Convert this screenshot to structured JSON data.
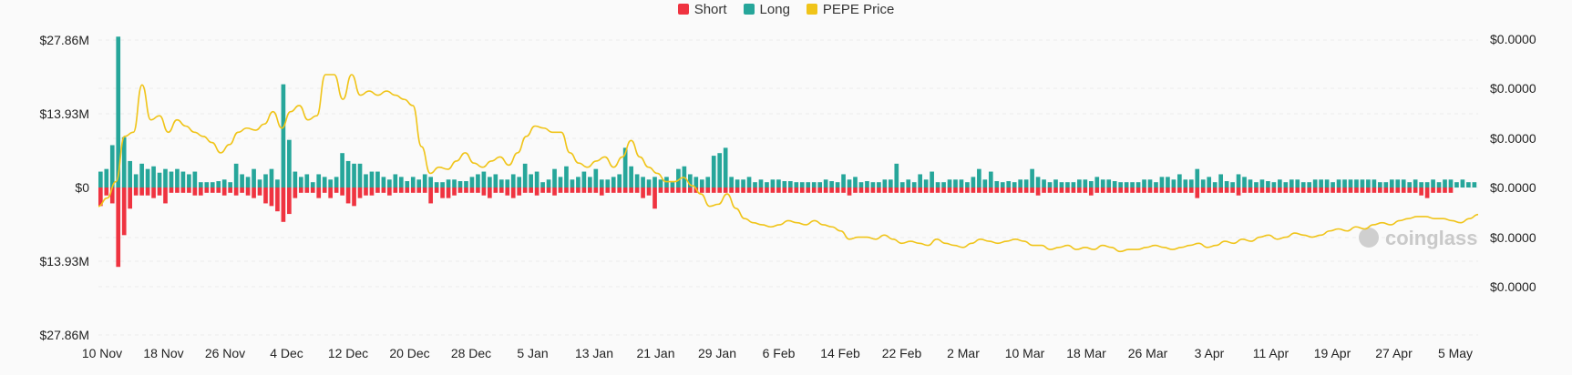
{
  "legend": {
    "items": [
      {
        "label": "Short",
        "color": "#ef3340"
      },
      {
        "label": "Long",
        "color": "#26a69a"
      },
      {
        "label": "PEPE Price",
        "color": "#f0c419"
      }
    ]
  },
  "watermark": "coinglass",
  "chart_data": {
    "type": "bar",
    "x_tick_labels": [
      "10 Nov",
      "18 Nov",
      "26 Nov",
      "4 Dec",
      "12 Dec",
      "20 Dec",
      "28 Dec",
      "5 Jan",
      "13 Jan",
      "21 Jan",
      "29 Jan",
      "6 Feb",
      "14 Feb",
      "22 Feb",
      "2 Mar",
      "10 Mar",
      "18 Mar",
      "26 Mar",
      "3 Apr",
      "11 Apr",
      "19 Apr",
      "27 Apr",
      "5 May"
    ],
    "y_left_tick_labels": [
      "$27.86M",
      "$13.93M",
      "$0",
      "$13.93M",
      "$27.86M"
    ],
    "y_left_values": [
      27.86,
      13.93,
      0,
      -13.93,
      -27.86
    ],
    "y_right_tick_labels": [
      "$0.0000",
      "$0.0000",
      "$0.0000",
      "$0.0000",
      "$0.0000",
      "$0.0000"
    ],
    "ylim_left": [
      -27.86,
      27.86
    ],
    "grid": true,
    "legend_position": "top-center",
    "series": [
      {
        "name": "Long",
        "color": "#26a69a",
        "values": [
          3,
          3.5,
          8,
          28.5,
          9.5,
          5,
          2.5,
          4.5,
          3.5,
          4,
          2.8,
          3.5,
          3,
          3.5,
          3,
          2.5,
          3,
          1,
          1,
          1,
          1.2,
          1.5,
          1,
          4.5,
          2.5,
          2,
          3.5,
          1.5,
          2.5,
          3.5,
          1.5,
          19.5,
          9,
          3,
          2,
          2.5,
          1,
          2.5,
          2,
          1.5,
          2,
          6.5,
          5,
          4.5,
          4.5,
          2.5,
          3,
          3,
          2,
          1.5,
          2.5,
          2,
          1.2,
          2,
          1.5,
          2.5,
          2,
          1,
          1,
          1.5,
          1.5,
          1.2,
          1.2,
          2,
          2.5,
          3,
          2,
          2.5,
          1.5,
          1.5,
          2.5,
          2,
          4.5,
          2.5,
          3,
          1,
          1.5,
          3.5,
          2,
          4,
          1.5,
          2,
          3,
          2,
          3.5,
          1.5,
          1.5,
          2,
          2.5,
          7.5,
          4,
          2.5,
          2,
          1.5,
          2,
          1.5,
          2,
          1,
          3.5,
          4,
          2.5,
          2,
          1.5,
          2,
          6,
          6.5,
          7.5,
          2,
          1.5,
          1.5,
          2,
          1,
          1.5,
          1,
          1.5,
          1.5,
          1.2,
          1.2,
          1,
          1,
          1,
          1,
          1,
          1.5,
          1.2,
          1,
          2.5,
          1.5,
          2,
          1,
          1.2,
          1,
          1,
          1.5,
          1.5,
          4.5,
          1,
          1.5,
          1,
          2.5,
          1.5,
          3,
          1,
          1,
          1.5,
          1.5,
          1.5,
          1,
          2,
          3.5,
          1.5,
          3,
          1.2,
          1,
          1.2,
          1,
          1.5,
          1.5,
          3.5,
          2,
          1.5,
          1,
          1.5,
          1,
          1,
          1,
          1.5,
          1.5,
          1.2,
          2,
          1.5,
          1.5,
          1.2,
          1,
          1,
          1,
          1,
          1.5,
          1.5,
          1,
          2,
          2,
          1.5,
          2.5,
          1.5,
          1.5,
          3.5,
          1.5,
          2,
          1,
          2.5,
          1.2,
          1,
          2.5,
          2,
          1.5,
          1,
          1.5,
          1.2,
          1,
          1.5,
          1,
          1.5,
          1.5,
          1,
          1,
          1.5,
          1.5,
          1.5,
          1,
          1.5,
          1.5,
          1.5,
          1.5,
          1.5,
          1.5,
          1.5,
          1,
          1,
          1.5,
          1.5,
          1.5,
          1,
          1.5,
          1,
          1,
          1.5,
          1,
          1.5,
          1.5,
          1,
          1.5,
          1,
          1
        ]
      },
      {
        "name": "Short",
        "color": "#ef3340",
        "values": [
          -3.5,
          -1.5,
          -3,
          -15,
          -9,
          -4,
          -1.5,
          -1.5,
          -1.5,
          -2,
          -1.5,
          -3,
          -1,
          -1,
          -1,
          -1,
          -1.5,
          -1.5,
          -1,
          -1,
          -1,
          -1.5,
          -1,
          -1.5,
          -1,
          -1.5,
          -2,
          -1.5,
          -3,
          -3.5,
          -4.5,
          -6.5,
          -5,
          -2,
          -1,
          -1,
          -1,
          -2,
          -1,
          -2,
          -1,
          -1.5,
          -3,
          -3.5,
          -2,
          -1.5,
          -1.5,
          -1,
          -1,
          -1.5,
          -1,
          -1,
          -1,
          -1,
          -1,
          -1,
          -3,
          -1,
          -2,
          -2,
          -1.5,
          -1,
          -1,
          -1,
          -1,
          -1.5,
          -2,
          -1,
          -1,
          -1.5,
          -2,
          -1.5,
          -1,
          -1,
          -1.5,
          -1,
          -1,
          -1.5,
          -1,
          -1,
          -1,
          -1,
          -1,
          -1,
          -1,
          -1.5,
          -1,
          -1,
          -1,
          -1,
          -1,
          -1,
          -2,
          -1.5,
          -4,
          -1,
          -1,
          -1,
          -1,
          -1,
          -1,
          -1,
          -1,
          -1,
          -1,
          -1,
          -1,
          -1,
          -1,
          -1,
          -1,
          -1,
          -1,
          -1,
          -1,
          -1,
          -1,
          -1,
          -1,
          -1,
          -1,
          -1,
          -1,
          -1,
          -1,
          -1,
          -1,
          -1.5,
          -1,
          -1,
          -1,
          -1,
          -1,
          -1,
          -1,
          -1,
          -1,
          -1,
          -1,
          -1,
          -1,
          -1,
          -1,
          -1,
          -1,
          -1,
          -1,
          -1,
          -1,
          -1,
          -1,
          -1,
          -1,
          -1,
          -1,
          -1,
          -1,
          -1,
          -1,
          -1.5,
          -1,
          -1,
          -1,
          -1,
          -1,
          -1,
          -1,
          -1,
          -1.5,
          -1,
          -1,
          -1,
          -1,
          -1,
          -1,
          -1,
          -1,
          -1,
          -1,
          -1,
          -1,
          -1,
          -1,
          -1,
          -1,
          -1,
          -2,
          -1,
          -1,
          -1,
          -1,
          -1,
          -1,
          -1.5,
          -1,
          -1,
          -1,
          -1,
          -1,
          -1,
          -1,
          -1,
          -1,
          -1,
          -1,
          -1,
          -1,
          -1,
          -1,
          -1,
          -1,
          -1,
          -1,
          -1,
          -1,
          -1,
          -1,
          -1,
          -1,
          -1,
          -1,
          -1,
          -1,
          -1,
          -1.5,
          -2,
          -1,
          -1,
          -1,
          -1
        ]
      },
      {
        "name": "PEPE Price",
        "color": "#f0c419",
        "values": [
          0.36,
          0.4,
          0.48,
          0.7,
          0.72,
          0.95,
          0.78,
          0.8,
          0.72,
          0.78,
          0.75,
          0.72,
          0.7,
          0.67,
          0.62,
          0.66,
          0.72,
          0.74,
          0.73,
          0.76,
          0.82,
          0.74,
          0.82,
          0.85,
          0.78,
          0.8,
          1.0,
          1.0,
          0.88,
          1.0,
          0.9,
          0.92,
          0.9,
          0.92,
          0.9,
          0.88,
          0.85,
          0.65,
          0.52,
          0.55,
          0.54,
          0.58,
          0.62,
          0.57,
          0.55,
          0.58,
          0.6,
          0.56,
          0.62,
          0.7,
          0.75,
          0.74,
          0.72,
          0.72,
          0.62,
          0.57,
          0.55,
          0.58,
          0.6,
          0.55,
          0.6,
          0.68,
          0.6,
          0.55,
          0.52,
          0.48,
          0.48,
          0.5,
          0.46,
          0.42,
          0.36,
          0.37,
          0.42,
          0.35,
          0.3,
          0.28,
          0.27,
          0.26,
          0.27,
          0.29,
          0.28,
          0.27,
          0.29,
          0.27,
          0.26,
          0.24,
          0.2,
          0.21,
          0.21,
          0.2,
          0.22,
          0.2,
          0.18,
          0.19,
          0.18,
          0.17,
          0.2,
          0.18,
          0.17,
          0.16,
          0.18,
          0.2,
          0.19,
          0.18,
          0.19,
          0.2,
          0.19,
          0.17,
          0.17,
          0.15,
          0.16,
          0.17,
          0.15,
          0.16,
          0.15,
          0.17,
          0.16,
          0.14,
          0.15,
          0.15,
          0.16,
          0.17,
          0.16,
          0.15,
          0.16,
          0.17,
          0.18,
          0.16,
          0.17,
          0.19,
          0.18,
          0.2,
          0.19,
          0.21,
          0.22,
          0.2,
          0.21,
          0.23,
          0.22,
          0.21,
          0.22,
          0.24,
          0.25,
          0.24,
          0.26,
          0.25,
          0.27,
          0.28,
          0.27,
          0.29,
          0.3,
          0.31,
          0.31,
          0.3,
          0.3,
          0.29,
          0.28,
          0.3,
          0.32
        ]
      }
    ]
  }
}
